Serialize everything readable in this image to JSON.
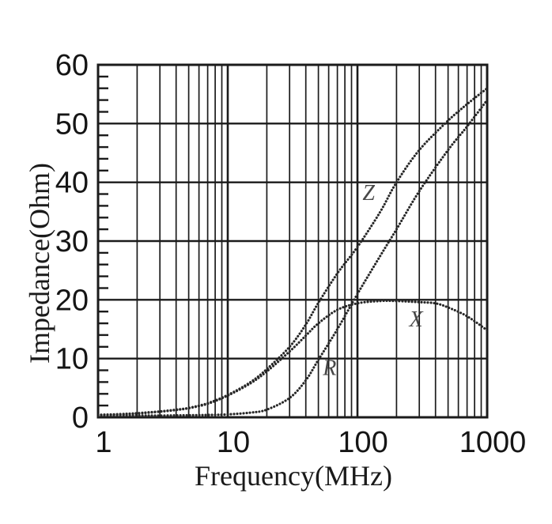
{
  "figure": {
    "background_color": "#ffffff",
    "grid_ink_color": "#1b1b1b",
    "curve_ink_color": "#272727",
    "text_ink_color": "#151515",
    "style_note": "scanned black-and-white datasheet chart, curves drawn as dotted lines"
  },
  "chart_data": {
    "type": "line",
    "title": "",
    "xlabel": "Frequency(MHz)",
    "ylabel": "Impedance(Ohm)",
    "x_scale": "log",
    "xlim": [
      1,
      1000
    ],
    "ylim": [
      0,
      60
    ],
    "x_tick_values": [
      1,
      10,
      100,
      1000
    ],
    "x_tick_labels": [
      "1",
      "10",
      "100",
      "1000"
    ],
    "y_tick_values": [
      0,
      10,
      20,
      30,
      40,
      50,
      60
    ],
    "y_tick_labels": [
      "0",
      "10",
      "20",
      "30",
      "40",
      "50",
      "60"
    ],
    "y_minor_tick_step": 2,
    "grid": {
      "x_minor_lines_full_height": true,
      "x_major_lines_full_height": true,
      "y_major_lines_full_width": true,
      "y_minor_short_ticks_on_left_axis": true,
      "legend": "none, curves labeled inline"
    },
    "series": [
      {
        "name": "Z",
        "label": {
          "text": "Z",
          "f_mhz": 122,
          "ohm": 37
        },
        "points_f_mhz_ohm": [
          [
            1,
            0.4
          ],
          [
            1.5,
            0.55
          ],
          [
            2,
            0.7
          ],
          [
            3,
            1.0
          ],
          [
            4,
            1.3
          ],
          [
            5,
            1.6
          ],
          [
            7,
            2.4
          ],
          [
            10,
            3.8
          ],
          [
            15,
            6.0
          ],
          [
            20,
            8.2
          ],
          [
            30,
            12.0
          ],
          [
            40,
            15.8
          ],
          [
            50,
            19.5
          ],
          [
            70,
            24.5
          ],
          [
            100,
            29.0
          ],
          [
            150,
            35.0
          ],
          [
            200,
            40.0
          ],
          [
            300,
            45.5
          ],
          [
            500,
            50.5
          ],
          [
            700,
            53.3
          ],
          [
            1000,
            56.0
          ]
        ]
      },
      {
        "name": "X",
        "label": {
          "text": "X",
          "f_mhz": 283,
          "ohm": 15.5
        },
        "points_f_mhz_ohm": [
          [
            1,
            0.4
          ],
          [
            1.5,
            0.5
          ],
          [
            2,
            0.65
          ],
          [
            3,
            0.95
          ],
          [
            4,
            1.25
          ],
          [
            5,
            1.55
          ],
          [
            7,
            2.3
          ],
          [
            10,
            3.7
          ],
          [
            15,
            5.8
          ],
          [
            20,
            7.8
          ],
          [
            30,
            11.2
          ],
          [
            40,
            13.9
          ],
          [
            50,
            16.0
          ],
          [
            70,
            18.3
          ],
          [
            100,
            19.4
          ],
          [
            150,
            19.8
          ],
          [
            200,
            19.8
          ],
          [
            300,
            19.6
          ],
          [
            400,
            19.4
          ],
          [
            500,
            18.7
          ],
          [
            700,
            17.2
          ],
          [
            1000,
            14.8
          ]
        ]
      },
      {
        "name": "R",
        "label": {
          "text": "R",
          "f_mhz": 61,
          "ohm": 7.2
        },
        "points_f_mhz_ohm": [
          [
            1,
            0.3
          ],
          [
            2,
            0.3
          ],
          [
            3,
            0.3
          ],
          [
            5,
            0.35
          ],
          [
            7,
            0.4
          ],
          [
            10,
            0.5
          ],
          [
            15,
            0.8
          ],
          [
            20,
            1.3
          ],
          [
            30,
            3.3
          ],
          [
            40,
            6.3
          ],
          [
            50,
            9.8
          ],
          [
            70,
            15.0
          ],
          [
            100,
            21.0
          ],
          [
            150,
            27.5
          ],
          [
            200,
            32.0
          ],
          [
            300,
            38.5
          ],
          [
            500,
            45.5
          ],
          [
            700,
            49.5
          ],
          [
            1000,
            54.0
          ]
        ]
      }
    ]
  }
}
